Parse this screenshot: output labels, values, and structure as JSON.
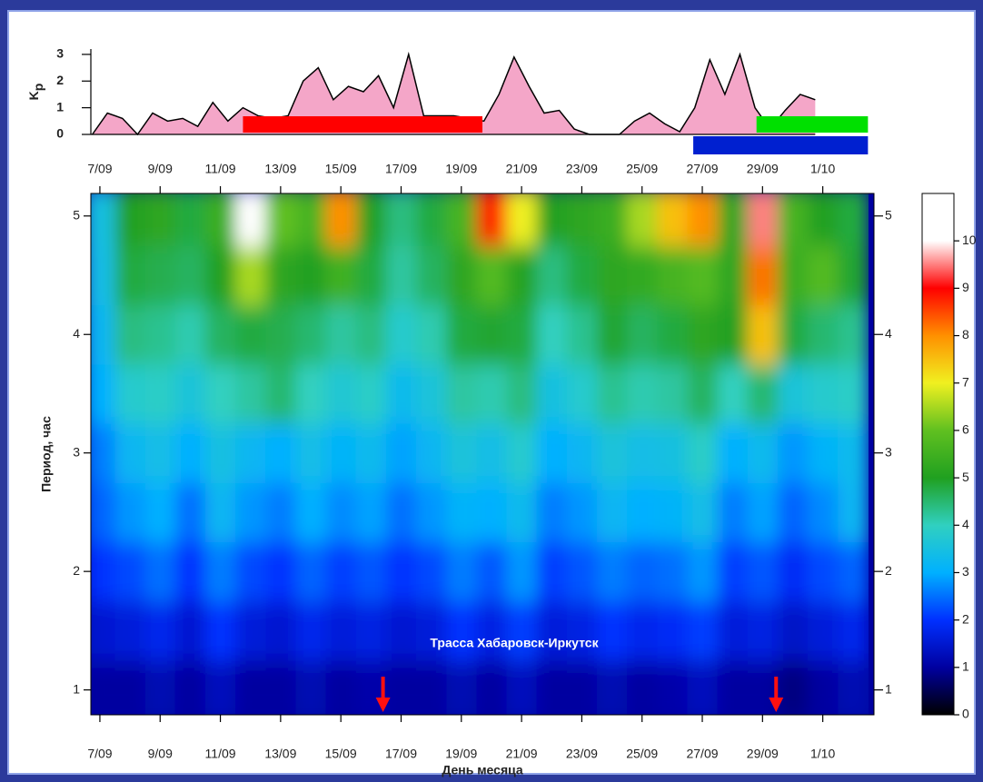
{
  "chart_data": [
    {
      "type": "area",
      "ylabel": "K",
      "ylabel_subscript": "p",
      "x": [
        6.75,
        7.25,
        7.75,
        8.25,
        8.75,
        9.25,
        9.75,
        10.25,
        10.75,
        11.25,
        11.75,
        12.25,
        12.75,
        13.25,
        13.75,
        14.25,
        14.75,
        15.25,
        15.75,
        16.25,
        16.75,
        17.25,
        17.75,
        18.25,
        18.75,
        19.25,
        19.75,
        20.25,
        20.75,
        21.25,
        21.75,
        22.25,
        22.75,
        23.25,
        23.75,
        24.25,
        24.75,
        25.25,
        25.75,
        26.25,
        26.75,
        27.25,
        27.75,
        28.25,
        28.75,
        29.25,
        29.75,
        30.25,
        30.75
      ],
      "values": [
        0,
        0.8,
        0.6,
        0,
        0.8,
        0.5,
        0.6,
        0.3,
        1.2,
        0.5,
        1.0,
        0.7,
        0.6,
        0.7,
        2.0,
        2.5,
        1.3,
        1.8,
        1.6,
        2.2,
        1.0,
        3.0,
        0.7,
        0.7,
        0.7,
        0.6,
        0.5,
        1.5,
        2.9,
        1.8,
        0.8,
        0.9,
        0.2,
        0,
        0,
        0,
        0.5,
        0.8,
        0.4,
        0.1,
        1.0,
        2.8,
        1.5,
        3.0,
        1.0,
        0.2,
        0.9,
        1.5,
        1.3
      ],
      "color": "#f4a6c8",
      "xlim": [
        6.7,
        32.7
      ],
      "xticks": [
        {
          "value": 7,
          "label": "7/09"
        },
        {
          "value": 9,
          "label": "9/09"
        },
        {
          "value": 11,
          "label": "11/09"
        },
        {
          "value": 13,
          "label": "13/09"
        },
        {
          "value": 15,
          "label": "15/09"
        },
        {
          "value": 17,
          "label": "17/09"
        },
        {
          "value": 19,
          "label": "19/09"
        },
        {
          "value": 21,
          "label": "21/09"
        },
        {
          "value": 23,
          "label": "23/09"
        },
        {
          "value": 25,
          "label": "25/09"
        },
        {
          "value": 27,
          "label": "27/09"
        },
        {
          "value": 29,
          "label": "29/09"
        },
        {
          "value": 31,
          "label": "1/10"
        }
      ],
      "ylim": [
        0,
        3.2
      ],
      "yticks": [
        0,
        1,
        2,
        3
      ],
      "bands": [
        {
          "start": 11.75,
          "end": 19.7,
          "color": "#ff0000"
        },
        {
          "start": 28.8,
          "end": 32.5,
          "color": "#00e000"
        }
      ],
      "lower_bands": [
        {
          "start": 26.7,
          "end": 32.5,
          "color": "#0020d0"
        }
      ]
    },
    {
      "type": "heatmap",
      "ylabel": "Период, час",
      "xlabel": "День месяца",
      "annotation": "Трасса Хабаровск-Иркутск",
      "x": [
        7,
        8,
        9,
        10,
        11,
        12,
        13,
        14,
        15,
        16,
        17,
        18,
        19,
        20,
        21,
        22,
        23,
        24,
        25,
        26,
        27,
        28,
        29,
        30,
        31,
        32
      ],
      "y": [
        1,
        1.5,
        2,
        2.5,
        3,
        3.5,
        4,
        4.5,
        5
      ],
      "z": [
        [
          1,
          1,
          1.2,
          1,
          1.3,
          1,
          1,
          1.2,
          1,
          1.1,
          1,
          1,
          1.2,
          1,
          1.3,
          1,
          1,
          1.2,
          1,
          1.1,
          1.3,
          1,
          1,
          0.8,
          1,
          1.2
        ],
        [
          1.5,
          1.6,
          1.8,
          1.5,
          2,
          1.6,
          1.5,
          1.8,
          1.6,
          1.7,
          1.5,
          1.6,
          2,
          1.7,
          2.1,
          1.6,
          1.7,
          2,
          1.8,
          1.9,
          2.1,
          1.6,
          1.7,
          1.4,
          1.6,
          1.8
        ],
        [
          2,
          2.2,
          2.5,
          2,
          2.6,
          2.2,
          2,
          2.4,
          2.1,
          2.3,
          2,
          2.2,
          2.6,
          2.3,
          2.8,
          2.1,
          2.3,
          2.6,
          2.4,
          2.5,
          2.8,
          2.1,
          2.3,
          1.9,
          2.2,
          2.4
        ],
        [
          2.4,
          2.8,
          3,
          2.5,
          3.2,
          2.8,
          2.6,
          3,
          2.7,
          2.9,
          2.5,
          2.8,
          3.1,
          3,
          3.3,
          2.6,
          2.8,
          3.2,
          3,
          3.1,
          3.4,
          2.6,
          2.9,
          2.4,
          2.7,
          3.2
        ],
        [
          2.6,
          3.2,
          3.4,
          3,
          3.5,
          3.2,
          3,
          3.4,
          3.1,
          3.3,
          2.9,
          3.2,
          3.6,
          3.4,
          3.8,
          3,
          3.2,
          3.6,
          3.4,
          3.5,
          3.9,
          3,
          3.3,
          2.8,
          3.1,
          3.3
        ],
        [
          3,
          3.8,
          3.9,
          3.6,
          4,
          4.2,
          4.5,
          4,
          3.7,
          3.9,
          3.3,
          3.6,
          4.2,
          4.1,
          4.4,
          3.5,
          3.8,
          4.3,
          4.1,
          4.2,
          4.6,
          4,
          4.5,
          3.6,
          3.8,
          3.9
        ],
        [
          3.2,
          4.4,
          4.3,
          4.1,
          4.6,
          4.8,
          4.7,
          4.5,
          4.2,
          4.4,
          3.8,
          4.1,
          4.8,
          4.9,
          4.8,
          4,
          4.3,
          4.9,
          4.6,
          4.8,
          5.2,
          5,
          7.5,
          4.8,
          4.5,
          4.3
        ],
        [
          3.4,
          4.8,
          4.7,
          4.6,
          5,
          6.5,
          5.2,
          5,
          5.5,
          4.8,
          4.2,
          4.6,
          5.2,
          5.8,
          5.1,
          4.4,
          4.8,
          5.2,
          5.3,
          5.6,
          5.8,
          5.2,
          8.2,
          5.4,
          5.8,
          4.9
        ],
        [
          3.5,
          5,
          5.2,
          4.8,
          5.4,
          10.5,
          6,
          5.6,
          8,
          5,
          4.4,
          4.8,
          5.6,
          8.8,
          7,
          5,
          5.2,
          5.4,
          6.5,
          7.5,
          8,
          5.2,
          9.5,
          5.6,
          5,
          4.8
        ]
      ],
      "xlim": [
        6.7,
        32.7
      ],
      "xticks": [
        {
          "value": 7,
          "label": "7/09"
        },
        {
          "value": 9,
          "label": "9/09"
        },
        {
          "value": 11,
          "label": "11/09"
        },
        {
          "value": 13,
          "label": "13/09"
        },
        {
          "value": 15,
          "label": "15/09"
        },
        {
          "value": 17,
          "label": "17/09"
        },
        {
          "value": 19,
          "label": "19/09"
        },
        {
          "value": 21,
          "label": "21/09"
        },
        {
          "value": 23,
          "label": "23/09"
        },
        {
          "value": 25,
          "label": "25/09"
        },
        {
          "value": 27,
          "label": "27/09"
        },
        {
          "value": 29,
          "label": "29/09"
        },
        {
          "value": 31,
          "label": "1/10"
        }
      ],
      "ylim": [
        0.79,
        5.19
      ],
      "yticks": [
        1,
        2,
        3,
        4,
        5
      ],
      "arrows": [
        16.4,
        29.45
      ],
      "arrow_color": "#ff1010",
      "clim": [
        0,
        11
      ],
      "cticks": [
        0,
        1,
        2,
        3,
        4,
        5,
        6,
        7,
        8,
        9,
        10
      ],
      "colormap": [
        "#000000",
        "#0000a0",
        "#0030ff",
        "#00b0ff",
        "#30d0c0",
        "#20a020",
        "#60c020",
        "#f0f020",
        "#ff9000",
        "#ff0000",
        "#ffffff"
      ]
    }
  ]
}
